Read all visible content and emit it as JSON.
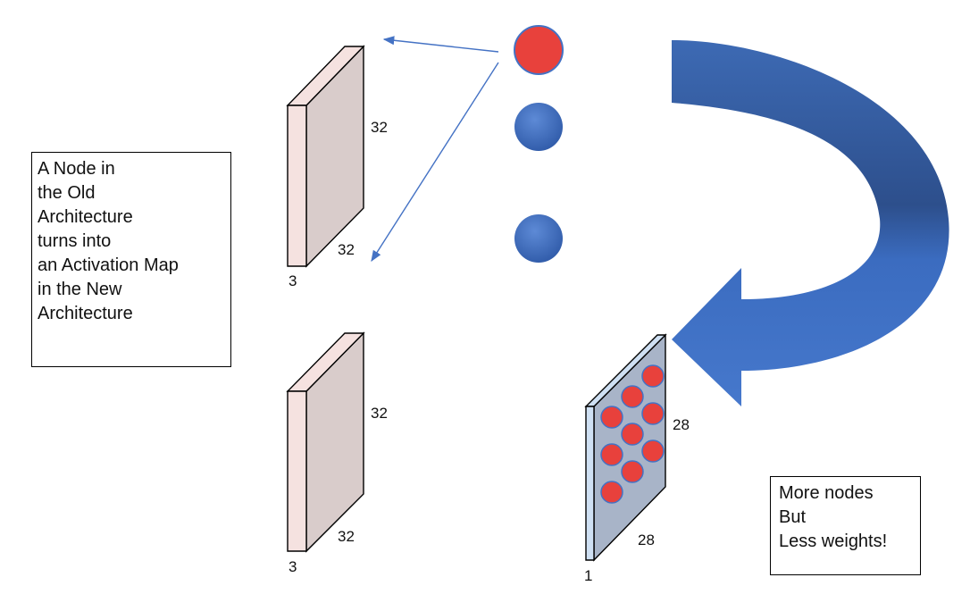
{
  "colors": {
    "layer_face": "#d9cccb",
    "layer_edge": "#f5e2e0",
    "activation_face": "#a8b4c8",
    "activation_edge": "#cfe0f3",
    "red_node": "#e8413c",
    "blue_node": "#4472c4",
    "arrow": "#4472c4",
    "big_arrow_light": "#4a7ccc",
    "big_arrow_dark": "#2a4a82"
  },
  "icons": {
    "layer": "3d-slab",
    "node": "circle",
    "flow": "curved-arrow"
  },
  "layers": {
    "top": {
      "height": "32",
      "width": "32",
      "depth": "3"
    },
    "bottom": {
      "height": "32",
      "width": "32",
      "depth": "3"
    }
  },
  "activation_map": {
    "height": "28",
    "width": "28",
    "depth": "1",
    "node_count": 9
  },
  "nodes": [
    {
      "kind": "red"
    },
    {
      "kind": "blue"
    },
    {
      "kind": "blue"
    }
  ],
  "left_note": {
    "lines": [
      "A Node in",
      "the Old",
      "Architecture",
      "turns into",
      "an Activation Map",
      "in the New",
      "Architecture"
    ]
  },
  "right_note": {
    "lines": [
      "More nodes",
      "But",
      "Less weights!"
    ]
  }
}
